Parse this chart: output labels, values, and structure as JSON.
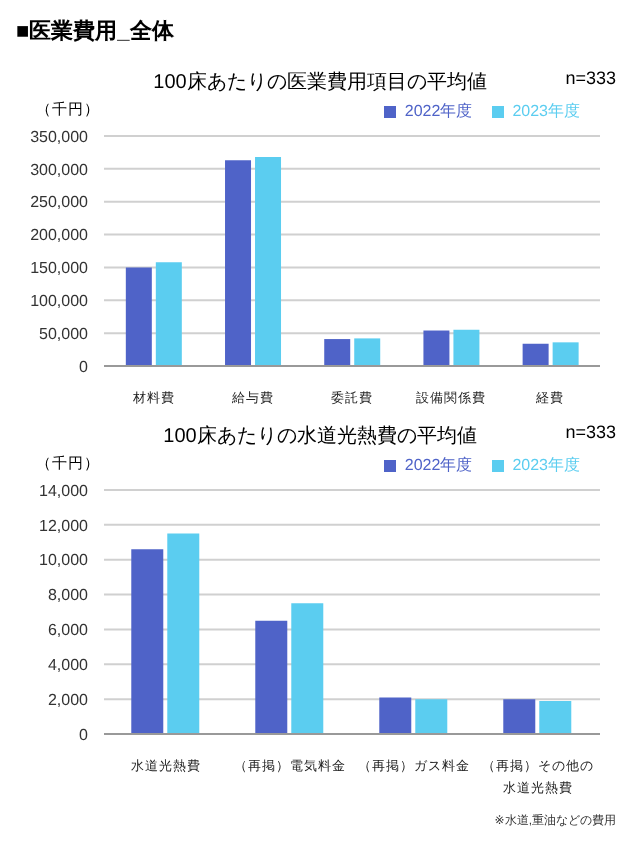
{
  "chart_data": [
    {
      "type": "bar",
      "title": "100床あたりの医業費用項目の平均値",
      "ylabel": "（千円）",
      "annotations": [
        "■医業費用_全体",
        "n=333"
      ],
      "categories": [
        "材料費",
        "給与費",
        "委託費",
        "設備関係費",
        "経費"
      ],
      "series": [
        {
          "name": "2022年度",
          "color": "#4f63c8",
          "values": [
            150000,
            313000,
            41000,
            54000,
            34000
          ]
        },
        {
          "name": "2023年度",
          "color": "#5bcdf0",
          "values": [
            158000,
            318000,
            42000,
            55000,
            36000
          ]
        }
      ],
      "ylim": [
        0,
        350000
      ],
      "yticks": [
        0,
        {
          "value": 50000,
          "label": "50,000"
        },
        {
          "value": 100000,
          "label": "100,000"
        },
        {
          "value": 150000,
          "label": "150,000"
        },
        {
          "value": 200000,
          "label": "200,000"
        },
        {
          "value": 250000,
          "label": "250,000"
        },
        {
          "value": 300000,
          "label": "300,000"
        },
        {
          "value": 350000,
          "label": "350,000"
        }
      ],
      "grid": "y",
      "legend": "top right"
    },
    {
      "type": "bar",
      "title": "100床あたりの水道光熱費の平均値",
      "ylabel": "（千円）",
      "annotations": [
        "n=333",
        "※水道,重油などの費用"
      ],
      "categories": [
        "水道光熱費",
        "（再掲）電気料金",
        "（再掲）ガス料金",
        "（再掲）その他の水道光熱費"
      ],
      "series": [
        {
          "name": "2022年度",
          "color": "#4f63c8",
          "values": [
            10600,
            6500,
            2100,
            2000
          ]
        },
        {
          "name": "2023年度",
          "color": "#5bcdf0",
          "values": [
            11500,
            7500,
            2000,
            1900
          ]
        }
      ],
      "ylim": [
        0,
        14000
      ],
      "yticks": [
        0,
        {
          "value": 2000,
          "label": "2,000"
        },
        {
          "value": 4000,
          "label": "4,000"
        },
        {
          "value": 6000,
          "label": "6,000"
        },
        {
          "value": 8000,
          "label": "8,000"
        },
        {
          "value": 10000,
          "label": "10,000"
        },
        {
          "value": 12000,
          "label": "12,000"
        },
        {
          "value": 14000,
          "label": "14,000"
        }
      ],
      "grid": "y",
      "legend": "top right"
    }
  ]
}
